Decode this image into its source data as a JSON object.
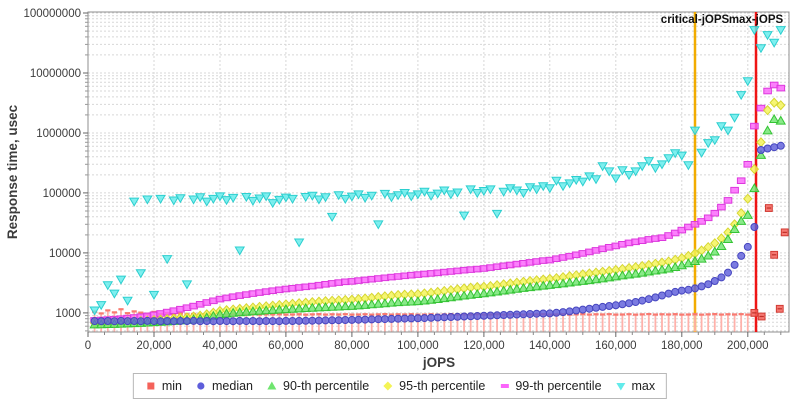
{
  "axes": {
    "x": {
      "label": "jOPS",
      "min": 0,
      "max": 212500,
      "major_tick_step": 20000,
      "minor_tick_step": 5000,
      "tick_labels": [
        "0",
        "20,000",
        "40,000",
        "60,000",
        "80,000",
        "100,000",
        "120,000",
        "140,000",
        "160,000",
        "180,000",
        "200,000"
      ]
    },
    "y": {
      "label": "Response time, usec",
      "scale": "log",
      "min": 480,
      "max": 104000000,
      "tick_values": [
        1000,
        10000,
        100000,
        1000000,
        10000000,
        100000000
      ],
      "tick_labels": [
        "1000",
        "10000",
        "100000",
        "1000000",
        "10000000",
        "100000000"
      ]
    },
    "grid": "dashed"
  },
  "reference_lines": [
    {
      "name": "critical-jOPS",
      "label": "critical-jOPS",
      "x": 184000,
      "color": "#f2ac00"
    },
    {
      "name": "max-jOPS",
      "label": "max-jOPS",
      "x": 202500,
      "color": "#ef1515"
    }
  ],
  "legend": {
    "items": [
      {
        "label": "min",
        "marker": "square",
        "color": "#f4625a"
      },
      {
        "label": "median",
        "marker": "circle",
        "color": "#5e5edb"
      },
      {
        "label": "90-th percentile",
        "marker": "triangle-up",
        "color": "#6fe56f"
      },
      {
        "label": "95-th percentile",
        "marker": "diamond",
        "color": "#f4f455"
      },
      {
        "label": "99-th percentile",
        "marker": "hbar",
        "color": "#fb64fb"
      },
      {
        "label": "max",
        "marker": "triangle-down",
        "color": "#62ebeb"
      }
    ]
  },
  "chart_data": {
    "type": "scatter",
    "title": "",
    "xlabel": "jOPS",
    "ylabel": "Response time, usec",
    "x_start": 2000,
    "x_step": 2000,
    "series": [
      {
        "name": "min",
        "marker": "impulse",
        "color": "#ffb2ab",
        "cap_color": "#f97a71",
        "values": [
          1050,
          980,
          1100,
          1020,
          1150,
          990,
          1060,
          1010,
          970,
          1040,
          960,
          990,
          950,
          970,
          945,
          960,
          950,
          940,
          950,
          945,
          940,
          950,
          935,
          945,
          955,
          938,
          948,
          942,
          952,
          936,
          940,
          950,
          935,
          945,
          955,
          938,
          948,
          942,
          952,
          936,
          940,
          950,
          935,
          945,
          955,
          938,
          948,
          942,
          952,
          936,
          940,
          950,
          935,
          945,
          955,
          938,
          948,
          942,
          952,
          936,
          940,
          950,
          935,
          945,
          955,
          938,
          948,
          942,
          952,
          936,
          940,
          950,
          935,
          945,
          955,
          938,
          948,
          942,
          952,
          936,
          940,
          950,
          935,
          945,
          955,
          938,
          948,
          942,
          952,
          936,
          940,
          950,
          935,
          945,
          955,
          938,
          948,
          942,
          952,
          936
        ],
        "post_points": [
          [
            202000,
            1000
          ],
          [
            204200,
            870
          ],
          [
            206400,
            56000
          ],
          [
            208000,
            9300
          ],
          [
            209700,
            1170
          ],
          [
            211200,
            22000
          ]
        ]
      },
      {
        "name": "median",
        "marker": "circle",
        "color": "#5e5edb",
        "stroke": "#4646c0",
        "values": [
          730,
          726,
          733,
          728,
          735,
          729,
          731,
          727,
          734,
          730,
          728,
          732,
          727,
          733,
          729,
          735,
          728,
          731,
          727,
          733,
          730,
          728,
          734,
          729,
          732,
          727,
          733,
          730,
          728,
          734,
          731,
          735,
          738,
          741,
          744,
          748,
          752,
          756,
          760,
          764,
          769,
          774,
          779,
          784,
          789,
          794,
          799,
          804,
          808,
          812,
          820,
          828,
          836,
          845,
          854,
          862,
          870,
          878,
          886,
          895,
          903,
          912,
          921,
          930,
          939,
          948,
          958,
          968,
          975,
          982,
          1005,
          1030,
          1060,
          1095,
          1135,
          1175,
          1215,
          1260,
          1300,
          1340,
          1390,
          1450,
          1520,
          1600,
          1700,
          1810,
          1950,
          2100,
          2240,
          2350,
          2430,
          2560,
          2760,
          3010,
          3400,
          3900,
          4700,
          6300,
          8900,
          12600,
          27000,
          520000,
          550000,
          580000,
          610000
        ]
      },
      {
        "name": "90-th percentile",
        "marker": "triangle-up",
        "color": "#6fe56f",
        "stroke": "#35c435",
        "values": [
          640,
          644,
          649,
          654,
          659,
          665,
          672,
          680,
          688,
          697,
          708,
          720,
          733,
          747,
          762,
          780,
          800,
          840,
          890,
          945,
          975,
          1000,
          1020,
          1040,
          1060,
          1080,
          1100,
          1118,
          1136,
          1152,
          1168,
          1184,
          1199,
          1214,
          1229,
          1244,
          1259,
          1274,
          1289,
          1304,
          1328,
          1355,
          1385,
          1415,
          1445,
          1475,
          1505,
          1528,
          1545,
          1562,
          1600,
          1648,
          1700,
          1758,
          1818,
          1878,
          1938,
          2000,
          2060,
          2120,
          2190,
          2268,
          2348,
          2430,
          2515,
          2598,
          2680,
          2760,
          2840,
          2920,
          3010,
          3100,
          3200,
          3300,
          3400,
          3505,
          3620,
          3748,
          3898,
          4050,
          4200,
          4350,
          4505,
          4680,
          4868,
          5060,
          5260,
          5470,
          5800,
          6200,
          6700,
          7300,
          8000,
          9000,
          10500,
          13000,
          17000,
          25000,
          34000,
          43000,
          120000,
          430000,
          1100000,
          1700000,
          1600000
        ]
      },
      {
        "name": "95-th percentile",
        "marker": "diamond",
        "color": "#f4f455",
        "stroke": "#d6d630",
        "values": [
          680,
          687,
          694,
          701,
          709,
          717,
          726,
          735,
          745,
          757,
          771,
          787,
          805,
          825,
          847,
          871,
          898,
          948,
          1008,
          1078,
          1110,
          1140,
          1170,
          1200,
          1230,
          1260,
          1290,
          1322,
          1355,
          1388,
          1420,
          1450,
          1480,
          1510,
          1540,
          1568,
          1596,
          1618,
          1640,
          1662,
          1700,
          1742,
          1788,
          1838,
          1888,
          1938,
          1988,
          2012,
          2032,
          2058,
          2110,
          2170,
          2240,
          2318,
          2398,
          2478,
          2558,
          2638,
          2698,
          2732,
          2800,
          2900,
          3000,
          3100,
          3200,
          3300,
          3400,
          3500,
          3600,
          3700,
          3800,
          3948,
          4098,
          4248,
          4398,
          4548,
          4700,
          4850,
          5000,
          5200,
          5400,
          5600,
          5800,
          6050,
          6300,
          6600,
          6900,
          7200,
          7700,
          8200,
          8900,
          9800,
          11000,
          12500,
          14500,
          17500,
          22000,
          30000,
          46000,
          80000,
          250000,
          700000,
          2400000,
          3200000,
          2900000
        ]
      },
      {
        "name": "99-th percentile",
        "marker": "square-wide",
        "color": "#fb64fb",
        "stroke": "#dd38dd",
        "values": [
          750,
          760,
          772,
          785,
          800,
          817,
          837,
          860,
          890,
          928,
          978,
          1030,
          1088,
          1150,
          1218,
          1298,
          1388,
          1488,
          1592,
          1700,
          1780,
          1860,
          1940,
          2020,
          2100,
          2180,
          2268,
          2348,
          2428,
          2500,
          2570,
          2648,
          2720,
          2800,
          2900,
          3000,
          3100,
          3200,
          3298,
          3350,
          3450,
          3550,
          3650,
          3750,
          3850,
          3950,
          4050,
          4150,
          4250,
          4350,
          4450,
          4552,
          4660,
          4778,
          4898,
          5018,
          5140,
          5260,
          5380,
          5500,
          5700,
          5898,
          6098,
          6298,
          6498,
          6700,
          6948,
          7198,
          7448,
          7600,
          8000,
          8398,
          8798,
          9298,
          9798,
          10400,
          11000,
          11700,
          12400,
          13100,
          13900,
          14700,
          15300,
          16000,
          16800,
          17300,
          17900,
          19500,
          21500,
          24000,
          27000,
          30000,
          33500,
          38500,
          46000,
          58000,
          75000,
          111000,
          160000,
          300000,
          1300000,
          2600000,
          5000000,
          6300000,
          5600000
        ]
      },
      {
        "name": "max",
        "marker": "triangle-down",
        "color": "#62ebeb",
        "stroke": "#2ccfcf",
        "values": [
          1100,
          1350,
          2900,
          2100,
          3600,
          1600,
          72000,
          4600,
          78000,
          2000,
          80000,
          7900,
          75000,
          82000,
          3000,
          78000,
          85000,
          72000,
          80000,
          88000,
          76000,
          83000,
          11000,
          86000,
          74000,
          81000,
          88000,
          68000,
          77000,
          84000,
          80000,
          15000,
          86000,
          90000,
          78000,
          85000,
          40000,
          92000,
          80000,
          87000,
          95000,
          83000,
          90000,
          30000,
          97000,
          85000,
          92000,
          100000,
          88000,
          95000,
          105000,
          90000,
          98000,
          110000,
          95000,
          102000,
          42000,
          115000,
          100000,
          108000,
          115000,
          45000,
          105000,
          120000,
          110000,
          100000,
          125000,
          115000,
          130000,
          120000,
          160000,
          130000,
          145000,
          165000,
          155000,
          190000,
          170000,
          280000,
          230000,
          175000,
          240000,
          200000,
          230000,
          280000,
          340000,
          260000,
          300000,
          380000,
          460000,
          420000,
          290000,
          1100000,
          470000,
          680000,
          760000,
          1300000,
          1100000,
          1800000,
          4300000,
          7300000,
          52000000,
          26000000,
          43000000,
          32000000,
          52000000
        ]
      }
    ]
  }
}
